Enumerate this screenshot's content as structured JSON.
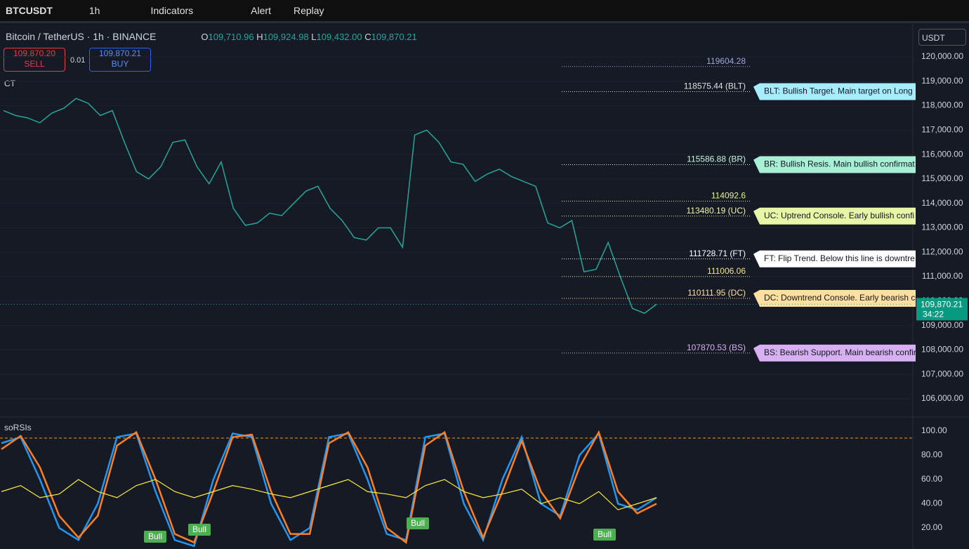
{
  "toolbar": {
    "symbol": "BTCUSDT",
    "interval": "1h",
    "indicators": "Indicators",
    "alert": "Alert",
    "replay": "Replay"
  },
  "legend": {
    "title": "Bitcoin / TetherUS · 1h · BINANCE",
    "o_label": "O",
    "o": "109,710.96",
    "h_label": "H",
    "h": "109,924.98",
    "l_label": "L",
    "l": "109,432.00",
    "c_label": "C",
    "c": "109,870.21",
    "sell_price": "109,870.20",
    "sell": "SELL",
    "qty": "0.01",
    "buy_price": "109,870.21",
    "buy": "BUY",
    "indicator": "CT"
  },
  "currency": "USDT",
  "price_chart": {
    "ylim": [
      106000,
      120000
    ],
    "yticks": [
      {
        "value": 120000,
        "label": "120,000.00"
      },
      {
        "value": 119000,
        "label": "119,000.00"
      },
      {
        "value": 118000,
        "label": "118,000.00"
      },
      {
        "value": 117000,
        "label": "117,000.00"
      },
      {
        "value": 116000,
        "label": "116,000.00"
      },
      {
        "value": 115000,
        "label": "115,000.00"
      },
      {
        "value": 114000,
        "label": "114,000.00"
      },
      {
        "value": 113000,
        "label": "113,000.00"
      },
      {
        "value": 112000,
        "label": "112,000.00"
      },
      {
        "value": 111000,
        "label": "111,000.00"
      },
      {
        "value": 110000,
        "label": "110,000.00"
      },
      {
        "value": 109000,
        "label": "109,000.00"
      },
      {
        "value": 108000,
        "label": "108,000.00"
      },
      {
        "value": 107000,
        "label": "107,000.00"
      },
      {
        "value": 106000,
        "label": "106,000.00"
      }
    ],
    "close": [
      117800,
      117600,
      117500,
      117300,
      117700,
      117900,
      118300,
      118100,
      117600,
      117800,
      116500,
      115300,
      115000,
      115500,
      116500,
      116600,
      115500,
      114800,
      115700,
      113800,
      113100,
      113200,
      113600,
      113500,
      114000,
      114500,
      114700,
      113800,
      113300,
      112600,
      112500,
      113000,
      113000,
      112200,
      116800,
      117000,
      116500,
      115700,
      115600,
      114900,
      115200,
      115400,
      115100,
      114900,
      114700,
      113200,
      113000,
      113300,
      111200,
      111300,
      112400,
      111000,
      109700,
      109500,
      109870
    ],
    "color": "#26a69a",
    "last_price": {
      "value": 109870.21,
      "label": "109,870.21"
    },
    "countdown": "34:22",
    "levels": [
      {
        "value": 119604.28,
        "label": "119604.28",
        "color": "#9fa8da"
      },
      {
        "value": 118575.44,
        "label": "118575.44 (BLT)",
        "note": "BLT: Bullish Target. Main target on Long",
        "color": "#e0e0e0",
        "bg": "#a6ecff"
      },
      {
        "value": 115586.88,
        "label": "115586.88 (BR)",
        "note": "BR: Bullish Resis. Main bullish confirmat",
        "color": "#c8f5e0",
        "bg": "#a8f0d4"
      },
      {
        "value": 114092.6,
        "label": "114092.6",
        "color": "#e6f58c"
      },
      {
        "value": 113480.19,
        "label": "113480.19 (UC)",
        "note": "UC: Uptrend Console. Early bullish confi",
        "color": "#eef5b0",
        "bg": "#e6f5a6"
      },
      {
        "value": 111728.71,
        "label": "111728.71 (FT)",
        "note": "FT: Flip Trend. Below this line is downtre",
        "color": "#ffffff",
        "bg": "#ffffff"
      },
      {
        "value": 111006.06,
        "label": "111006.06",
        "color": "#f5e58c"
      },
      {
        "value": 110111.95,
        "label": "110111.95 (DC)",
        "note": "DC: Downtrend Console. Early bearish co",
        "color": "#ffe0a0",
        "bg": "#ffe0a0"
      },
      {
        "value": 107870.53,
        "label": "107870.53 (BS)",
        "note": "BS: Bearish Support. Main bearish confir",
        "color": "#d6b0f0",
        "bg": "#d6b0f0"
      }
    ]
  },
  "rsi_panel": {
    "title": "soRSIs",
    "ylim": [
      20,
      100
    ],
    "yticks": [
      {
        "value": 100,
        "label": "100.00"
      },
      {
        "value": 80,
        "label": "80.00"
      },
      {
        "value": 60,
        "label": "60.00"
      },
      {
        "value": 40,
        "label": "40.00"
      },
      {
        "value": 20,
        "label": "20.00"
      }
    ],
    "series": [
      {
        "color": "#2196f3",
        "values": [
          90,
          95,
          60,
          20,
          10,
          40,
          95,
          98,
          50,
          10,
          5,
          60,
          98,
          95,
          40,
          10,
          20,
          95,
          98,
          60,
          15,
          10,
          95,
          98,
          40,
          10,
          60,
          95,
          40,
          30,
          80,
          98,
          40,
          35,
          45
        ]
      },
      {
        "color": "#ff7f27",
        "values": [
          85,
          96,
          70,
          30,
          12,
          30,
          88,
          99,
          60,
          15,
          8,
          50,
          95,
          97,
          50,
          15,
          15,
          90,
          99,
          70,
          20,
          8,
          88,
          99,
          50,
          12,
          50,
          92,
          50,
          28,
          70,
          99,
          50,
          32,
          40
        ]
      },
      {
        "color": "#ffeb3b",
        "values": [
          50,
          55,
          45,
          48,
          60,
          50,
          45,
          55,
          60,
          50,
          45,
          50,
          55,
          52,
          48,
          45,
          50,
          55,
          60,
          50,
          48,
          45,
          55,
          60,
          50,
          45,
          48,
          52,
          40,
          45,
          40,
          50,
          35,
          40,
          45
        ]
      }
    ],
    "signals": [
      "Bull",
      "Bull",
      "Bull",
      "Bull"
    ]
  }
}
